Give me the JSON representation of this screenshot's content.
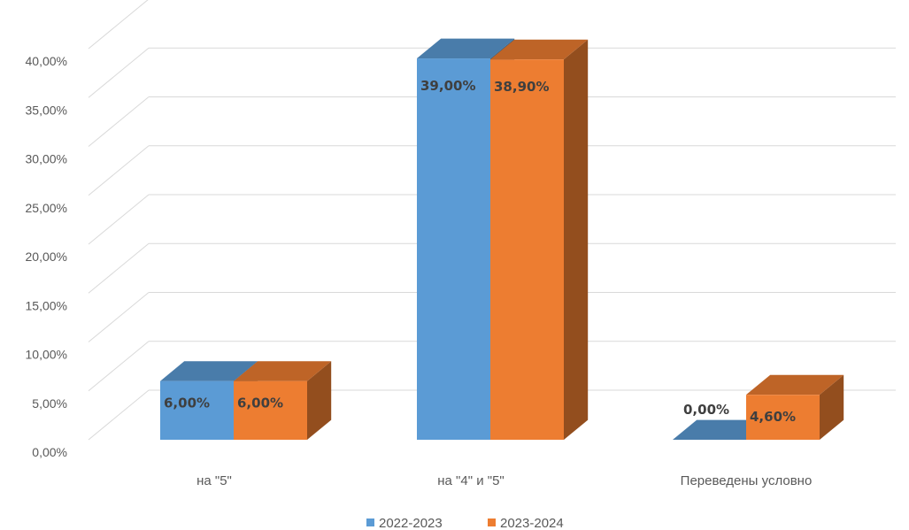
{
  "chart_data": {
    "type": "bar",
    "categories": [
      "на \"5\"",
      "на \"4\" и \"5\"",
      "Переведены условно"
    ],
    "series": [
      {
        "name": "2022-2023",
        "values": [
          6.0,
          39.0,
          0.0
        ],
        "labels": [
          "6,00%",
          "39,00%",
          "0,00%"
        ],
        "color": "#5b9bd5"
      },
      {
        "name": "2023-2024",
        "values": [
          6.0,
          38.9,
          4.6
        ],
        "labels": [
          "6,00%",
          "38,90%",
          "4,60%"
        ],
        "color": "#ed7d31"
      }
    ],
    "y_ticks": [
      "0,00%",
      "5,00%",
      "10,00%",
      "15,00%",
      "20,00%",
      "25,00%",
      "30,00%",
      "35,00%",
      "40,00%"
    ],
    "ylim": [
      0,
      40
    ],
    "grid": true,
    "legend_position": "bottom",
    "title": "",
    "xlabel": "",
    "ylabel": ""
  }
}
